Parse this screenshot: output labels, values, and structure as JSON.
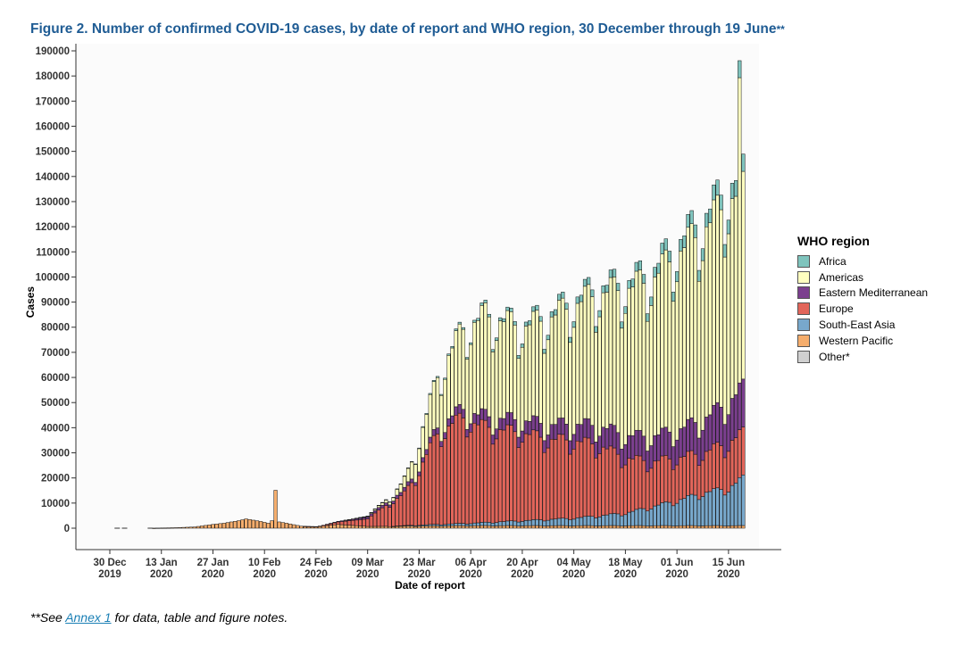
{
  "page": {
    "title": "Figure 2. Number of confirmed COVID-19 cases, by date of report and WHO region, 30 December through 19 June",
    "title_stars": "**",
    "footnote_prefix": "**See ",
    "footnote_link": "Annex 1",
    "footnote_suffix": " for data, table and figure notes."
  },
  "chart_data": {
    "type": "bar",
    "stacked": true,
    "xlabel": "Date of report",
    "ylabel": "Cases",
    "ylim": [
      0,
      190000
    ],
    "yticks": [
      0,
      10000,
      20000,
      30000,
      40000,
      50000,
      60000,
      70000,
      80000,
      90000,
      100000,
      110000,
      120000,
      130000,
      140000,
      150000,
      160000,
      170000,
      180000,
      190000
    ],
    "x_start": "2019-12-30",
    "x_end": "2020-06-19",
    "xticks": [
      {
        "date": "2019-12-30",
        "label": "30 Dec",
        "year": "2019"
      },
      {
        "date": "2020-01-13",
        "label": "13 Jan",
        "year": "2020"
      },
      {
        "date": "2020-01-27",
        "label": "27 Jan",
        "year": "2020"
      },
      {
        "date": "2020-02-10",
        "label": "10 Feb",
        "year": "2020"
      },
      {
        "date": "2020-02-24",
        "label": "24 Feb",
        "year": "2020"
      },
      {
        "date": "2020-03-09",
        "label": "09 Mar",
        "year": "2020"
      },
      {
        "date": "2020-03-23",
        "label": "23 Mar",
        "year": "2020"
      },
      {
        "date": "2020-04-06",
        "label": "06 Apr",
        "year": "2020"
      },
      {
        "date": "2020-04-20",
        "label": "20 Apr",
        "year": "2020"
      },
      {
        "date": "2020-05-04",
        "label": "04 May",
        "year": "2020"
      },
      {
        "date": "2020-05-18",
        "label": "18 May",
        "year": "2020"
      },
      {
        "date": "2020-06-01",
        "label": "01 Jun",
        "year": "2020"
      },
      {
        "date": "2020-06-15",
        "label": "15 Jun",
        "year": "2020"
      }
    ],
    "legend_title": "WHO region",
    "legend_position": "right",
    "series": [
      {
        "name": "Africa",
        "color": "#7fc4bd"
      },
      {
        "name": "Americas",
        "color": "#ffffc0"
      },
      {
        "name": "Eastern Mediterranean",
        "color": "#7b3f8e"
      },
      {
        "name": "Europe",
        "color": "#e2655a"
      },
      {
        "name": "South-East Asia",
        "color": "#78a8cc"
      },
      {
        "name": "Western Pacific",
        "color": "#f5ad6c"
      },
      {
        "name": "Other*",
        "color": "#d0d0d0"
      }
    ],
    "knots": {
      "Western Pacific": [
        [
          "2020-01-10",
          0
        ],
        [
          "2020-01-17",
          200
        ],
        [
          "2020-01-22",
          500
        ],
        [
          "2020-01-27",
          1500
        ],
        [
          "2020-01-30",
          2000
        ],
        [
          "2020-02-03",
          3000
        ],
        [
          "2020-02-05",
          3700
        ],
        [
          "2020-02-07",
          3200
        ],
        [
          "2020-02-09",
          2700
        ],
        [
          "2020-02-11",
          2000
        ],
        [
          "2020-02-13",
          4000
        ],
        [
          "2020-02-14",
          2500
        ],
        [
          "2020-02-16",
          2000
        ],
        [
          "2020-02-20",
          800
        ],
        [
          "2020-02-24",
          500
        ],
        [
          "2020-03-01",
          1500
        ],
        [
          "2020-03-09",
          700
        ],
        [
          "2020-04-06",
          1000
        ],
        [
          "2020-06-19",
          1000
        ]
      ],
      "Europe": [
        [
          "2020-02-20",
          0
        ],
        [
          "2020-02-25",
          200
        ],
        [
          "2020-03-01",
          1000
        ],
        [
          "2020-03-05",
          2000
        ],
        [
          "2020-03-09",
          3000
        ],
        [
          "2020-03-12",
          6500
        ],
        [
          "2020-03-16",
          10000
        ],
        [
          "2020-03-19",
          13000
        ],
        [
          "2020-03-22",
          19000
        ],
        [
          "2020-03-25",
          28000
        ],
        [
          "2020-03-28",
          36000
        ],
        [
          "2020-04-01",
          40000
        ],
        [
          "2020-04-04",
          42000
        ],
        [
          "2020-04-08",
          39000
        ],
        [
          "2020-04-13",
          37000
        ],
        [
          "2020-04-20",
          35000
        ],
        [
          "2020-04-27",
          32000
        ],
        [
          "2020-05-04",
          31000
        ],
        [
          "2020-05-11",
          28000
        ],
        [
          "2020-05-18",
          22000
        ],
        [
          "2020-05-25",
          18000
        ],
        [
          "2020-06-01",
          17000
        ],
        [
          "2020-06-08",
          16000
        ],
        [
          "2020-06-15",
          18000
        ],
        [
          "2020-06-19",
          18000
        ]
      ],
      "South-East Asia": [
        [
          "2020-03-15",
          0
        ],
        [
          "2020-03-25",
          500
        ],
        [
          "2020-04-06",
          1000
        ],
        [
          "2020-04-20",
          2000
        ],
        [
          "2020-05-04",
          3000
        ],
        [
          "2020-05-18",
          5000
        ],
        [
          "2020-06-01",
          10000
        ],
        [
          "2020-06-08",
          13000
        ],
        [
          "2020-06-15",
          15000
        ],
        [
          "2020-06-19",
          19000
        ]
      ],
      "Eastern Mediterranean": [
        [
          "2020-02-26",
          0
        ],
        [
          "2020-03-05",
          500
        ],
        [
          "2020-03-12",
          1000
        ],
        [
          "2020-03-22",
          1500
        ],
        [
          "2020-04-01",
          3000
        ],
        [
          "2020-04-08",
          4000
        ],
        [
          "2020-04-20",
          5000
        ],
        [
          "2020-05-04",
          6500
        ],
        [
          "2020-05-18",
          9000
        ],
        [
          "2020-06-01",
          11000
        ],
        [
          "2020-06-10",
          14000
        ],
        [
          "2020-06-19",
          18000
        ]
      ],
      "Americas": [
        [
          "2020-03-02",
          0
        ],
        [
          "2020-03-09",
          300
        ],
        [
          "2020-03-16",
          1500
        ],
        [
          "2020-03-20",
          5000
        ],
        [
          "2020-03-24",
          12000
        ],
        [
          "2020-03-28",
          20000
        ],
        [
          "2020-04-01",
          27000
        ],
        [
          "2020-04-06",
          35000
        ],
        [
          "2020-04-10",
          40000
        ],
        [
          "2020-04-20",
          37000
        ],
        [
          "2020-05-01",
          45000
        ],
        [
          "2020-05-10",
          52000
        ],
        [
          "2020-05-18",
          58000
        ],
        [
          "2020-05-25",
          62000
        ],
        [
          "2020-06-01",
          70000
        ],
        [
          "2020-06-08",
          75000
        ],
        [
          "2020-06-15",
          80000
        ],
        [
          "2020-06-19",
          78000
        ]
      ],
      "Africa": [
        [
          "2020-03-05",
          0
        ],
        [
          "2020-03-20",
          200
        ],
        [
          "2020-04-06",
          800
        ],
        [
          "2020-04-20",
          1500
        ],
        [
          "2020-05-04",
          2500
        ],
        [
          "2020-05-18",
          3000
        ],
        [
          "2020-06-01",
          4500
        ],
        [
          "2020-06-10",
          5500
        ],
        [
          "2020-06-19",
          6500
        ]
      ]
    },
    "spikes": [
      {
        "date": "2020-02-13",
        "series": "Western Pacific",
        "value": 15100
      },
      {
        "date": "2020-06-18",
        "series": "Americas",
        "value": 121500
      }
    ]
  }
}
